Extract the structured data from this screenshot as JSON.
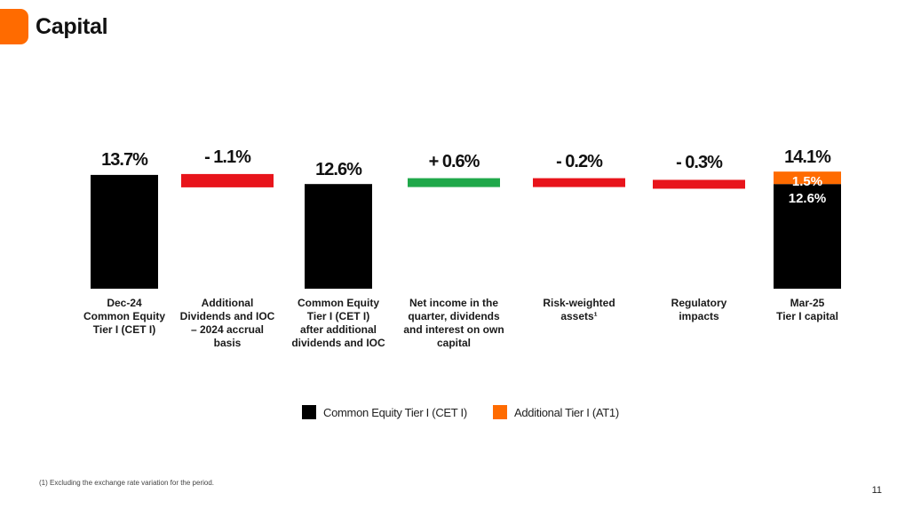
{
  "header": {
    "title": "Capital"
  },
  "colors": {
    "accent": "#ff6b00",
    "cet1": "#000000",
    "at1": "#ff6b00",
    "negative": "#e8141b",
    "positive": "#1fa84a"
  },
  "chart_data": {
    "type": "bar",
    "subtype": "waterfall",
    "categories": [
      "Dec-24\nCommon Equity\nTier I (CET I)",
      "Additional\nDividends and IOC\n– 2024 accrual\nbasis",
      "Common Equity\nTier I (CET I)\nafter additional\ndividends and IOC",
      "Net income in the\nquarter, dividends\nand interest on own\ncapital",
      "Risk-weighted\nassets¹",
      "Regulatory\nimpacts",
      "Mar-25\nTier I capital"
    ],
    "values": [
      13.7,
      -1.1,
      12.6,
      0.6,
      -0.2,
      -0.3,
      14.1
    ],
    "labels": [
      "13.7%",
      "- 1.1%",
      "12.6%",
      "+ 0.6%",
      "- 0.2%",
      "- 0.3%",
      "14.1%"
    ],
    "final_stack": [
      {
        "name": "Common Equity Tier I (CET I)",
        "value": 12.6,
        "label": "12.6%"
      },
      {
        "name": "Additional Tier I (AT1)",
        "value": 1.5,
        "label": "1.5%"
      }
    ],
    "legend": [
      {
        "name": "Common Equity Tier I (CET I)",
        "color": "#000000"
      },
      {
        "name": "Additional Tier I (AT1)",
        "color": "#ff6b00"
      }
    ],
    "legend_position": "bottom",
    "grid": false
  },
  "footer": {
    "footnote": "(1) Excluding the exchange rate variation for the period.",
    "page_number": "11"
  }
}
